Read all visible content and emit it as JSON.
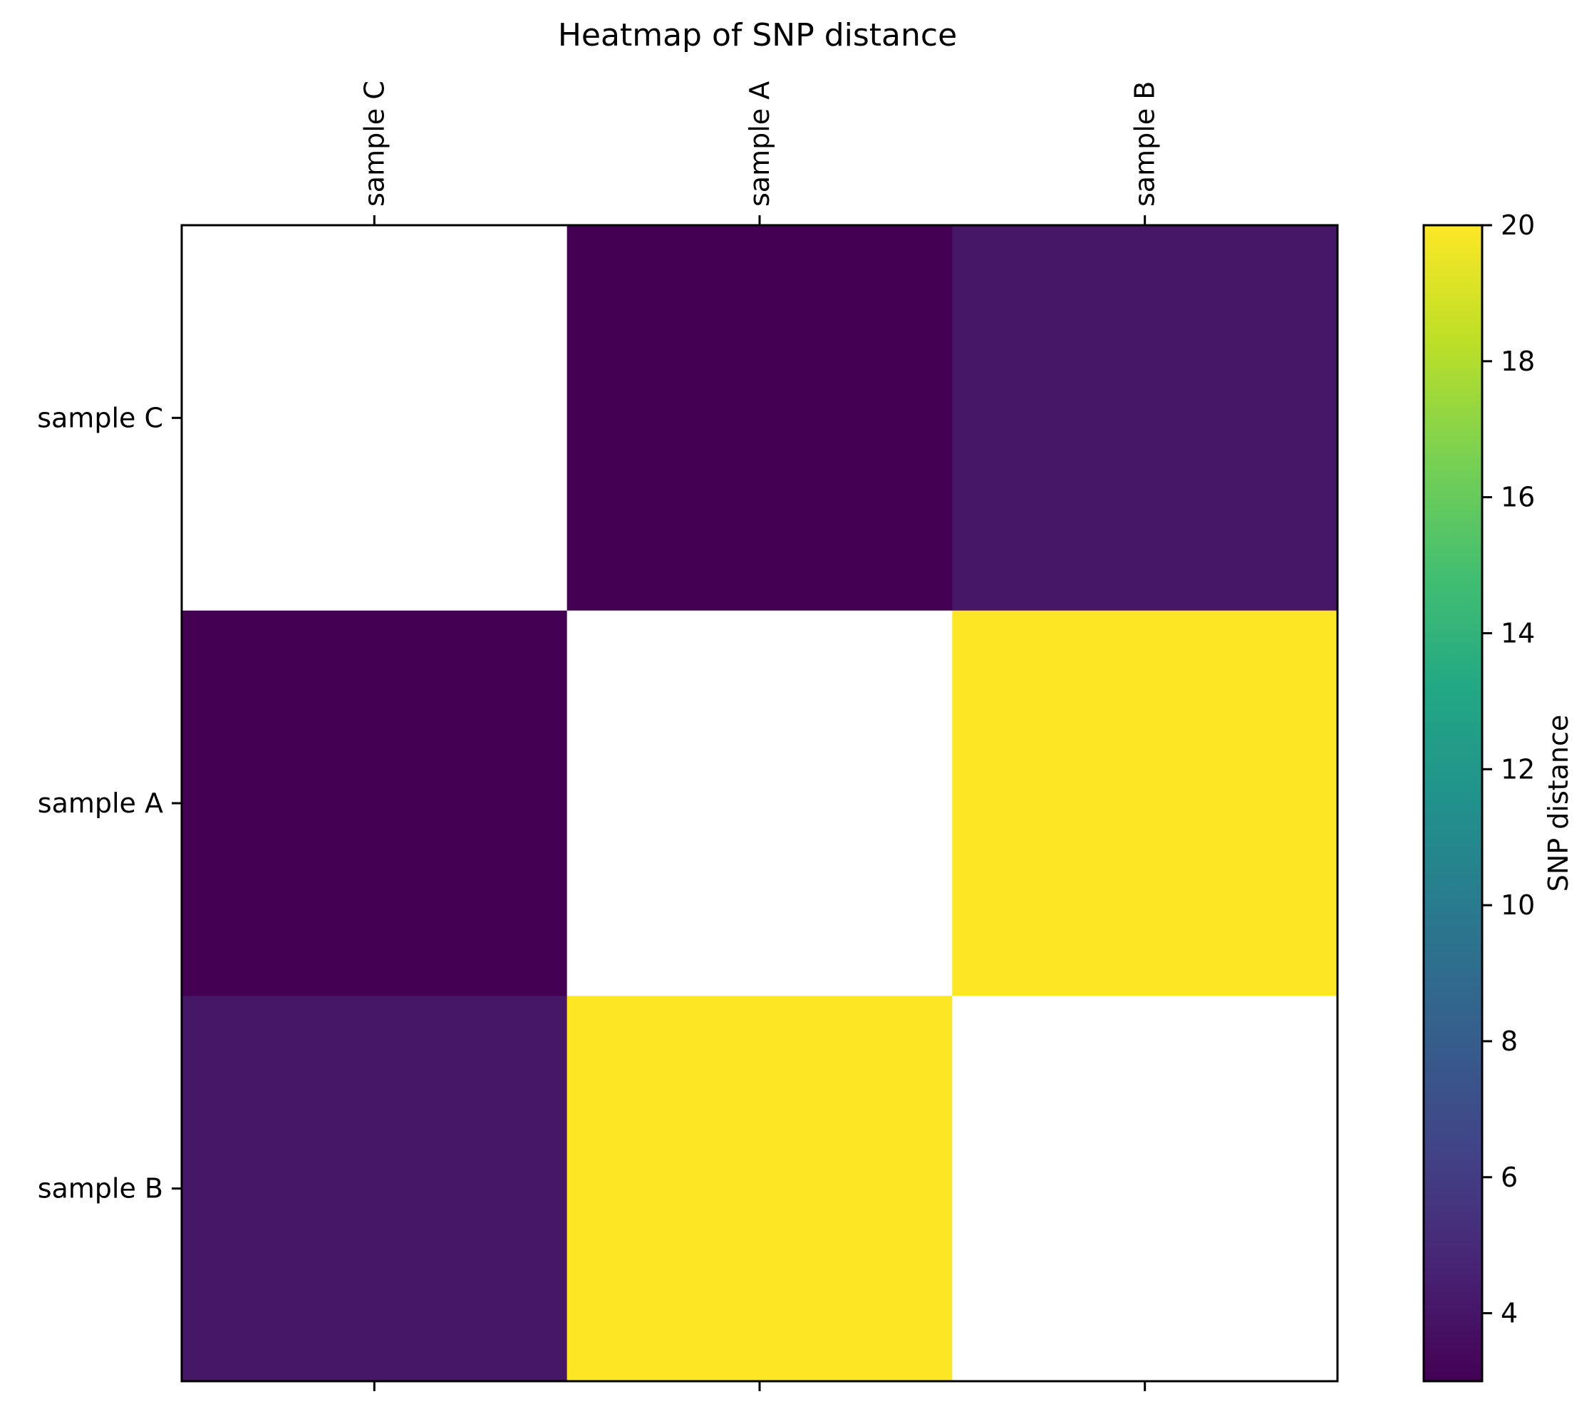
{
  "chart_data": {
    "type": "heatmap",
    "title": "Heatmap of SNP distance",
    "x_categories": [
      "sample C",
      "sample A",
      "sample B"
    ],
    "y_categories": [
      "sample C",
      "sample A",
      "sample B"
    ],
    "x_tick_position": "top",
    "matrix": [
      [
        null,
        3,
        4
      ],
      [
        3,
        null,
        20
      ],
      [
        4,
        20,
        null
      ]
    ],
    "missing_color": "#ffffff",
    "colormap": "viridis",
    "vmin": 3,
    "vmax": 20,
    "colorbar": {
      "label": "SNP distance",
      "ticks": [
        4,
        6,
        8,
        10,
        12,
        14,
        16,
        18,
        20
      ],
      "position": "right"
    },
    "grid": false
  }
}
